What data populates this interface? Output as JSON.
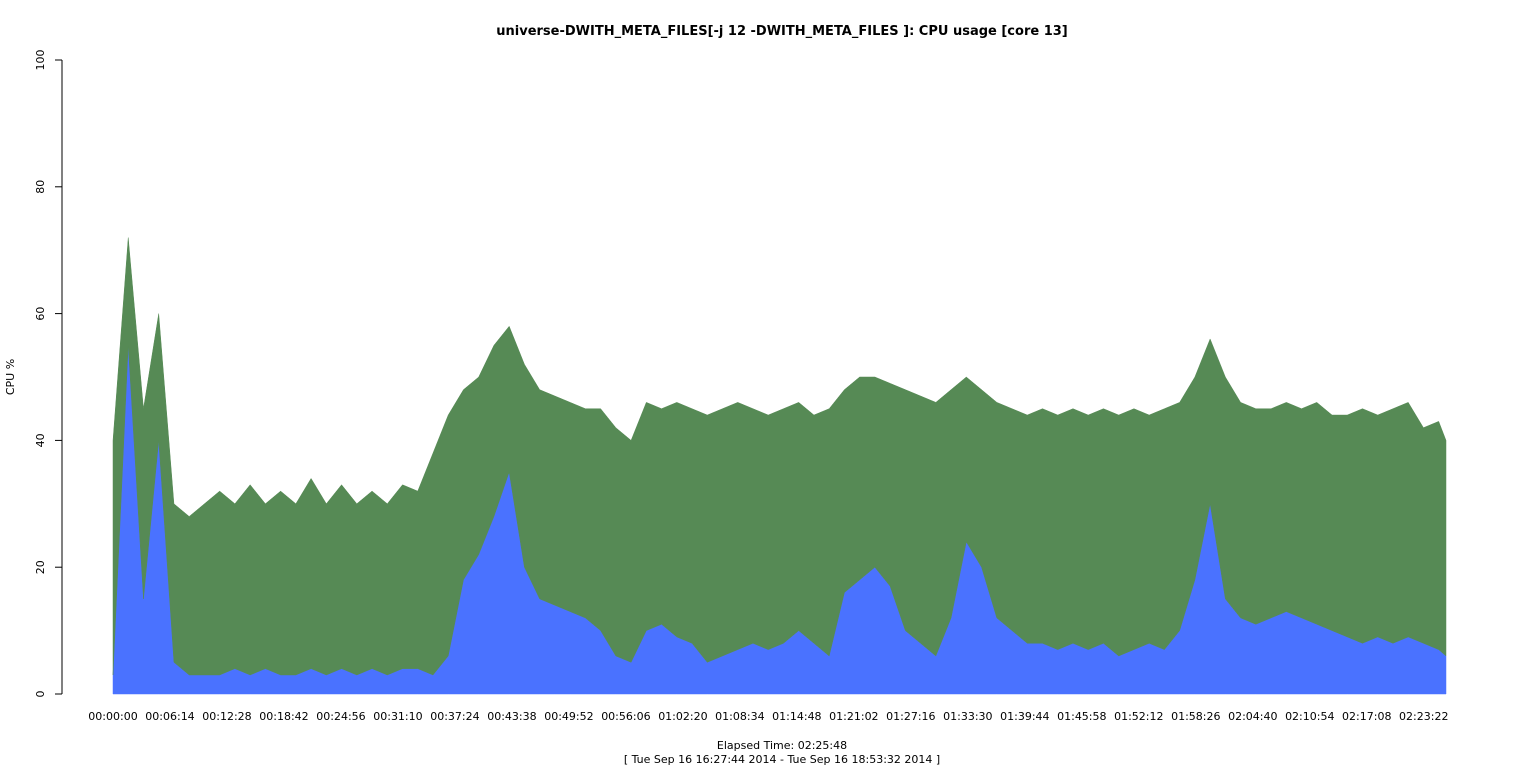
{
  "chart_data": {
    "type": "stacked_area",
    "title": "universe-DWITH_META_FILES[-j 12 -DWITH_META_FILES ]: CPU usage [core 13]",
    "y_label": "CPU %",
    "x_label": "Elapsed Time: 02:25:48",
    "subtitle": "[ Tue Sep 16 16:27:44 2014 - Tue Sep 16 18:53:32 2014 ]",
    "x": [
      0,
      100,
      200,
      300,
      400,
      500,
      600,
      700,
      800,
      900,
      1000,
      1100,
      1200,
      1300,
      1400,
      1500,
      1600,
      1700,
      1800,
      1900,
      2000,
      2100,
      2200,
      2300,
      2400,
      2500,
      2600,
      2700,
      2800,
      2900,
      3000,
      3100,
      3200,
      3300,
      3400,
      3500,
      3600,
      3700,
      3800,
      3900,
      4000,
      4100,
      4200,
      4300,
      4400,
      4500,
      4600,
      4700,
      4800,
      4900,
      5000,
      5100,
      5200,
      5300,
      5400,
      5500,
      5600,
      5700,
      5800,
      5900,
      6000,
      6100,
      6200,
      6300,
      6400,
      6500,
      6600,
      6700,
      6800,
      6900,
      7000,
      7100,
      7200,
      7300,
      7400,
      7500,
      7600,
      7700,
      7800,
      7900,
      8000,
      8100,
      8200,
      8300,
      8400,
      8500,
      8600,
      8700,
      8748
    ],
    "series": [
      {
        "color": "#4a72ff",
        "values": [
          3,
          55,
          15,
          40,
          5,
          3,
          3,
          3,
          4,
          3,
          4,
          3,
          3,
          4,
          3,
          4,
          3,
          4,
          3,
          4,
          4,
          3,
          6,
          18,
          22,
          28,
          35,
          20,
          15,
          14,
          13,
          12,
          10,
          6,
          5,
          10,
          11,
          9,
          8,
          5,
          6,
          7,
          8,
          7,
          8,
          10,
          8,
          6,
          16,
          18,
          20,
          17,
          10,
          8,
          6,
          12,
          24,
          20,
          12,
          10,
          8,
          8,
          7,
          8,
          7,
          8,
          6,
          7,
          8,
          7,
          10,
          18,
          30,
          15,
          12,
          11,
          12,
          13,
          12,
          11,
          10,
          9,
          8,
          9,
          8,
          9,
          8,
          7,
          6
        ]
      },
      {
        "color": "#568a55",
        "values": [
          37,
          17,
          30,
          20,
          25,
          25,
          27,
          29,
          26,
          30,
          26,
          29,
          27,
          30,
          27,
          29,
          27,
          28,
          27,
          29,
          28,
          35,
          38,
          30,
          28,
          27,
          23,
          32,
          33,
          33,
          33,
          33,
          35,
          36,
          35,
          36,
          34,
          37,
          37,
          39,
          39,
          39,
          37,
          37,
          37,
          36,
          36,
          39,
          32,
          32,
          30,
          32,
          38,
          39,
          40,
          36,
          26,
          28,
          34,
          35,
          36,
          37,
          37,
          37,
          37,
          37,
          38,
          38,
          36,
          38,
          36,
          32,
          26,
          35,
          34,
          34,
          33,
          33,
          33,
          35,
          34,
          35,
          37,
          35,
          37,
          37,
          34,
          36,
          34
        ]
      }
    ],
    "xlim": [
      0,
      8748
    ],
    "ylim": [
      0,
      100
    ],
    "yticks": [
      0,
      20,
      40,
      60,
      80,
      100
    ],
    "xticks": [
      {
        "value": 0,
        "label": "00:00:00"
      },
      {
        "value": 374,
        "label": "00:06:14"
      },
      {
        "value": 748,
        "label": "00:12:28"
      },
      {
        "value": 1122,
        "label": "00:18:42"
      },
      {
        "value": 1496,
        "label": "00:24:56"
      },
      {
        "value": 1870,
        "label": "00:31:10"
      },
      {
        "value": 2244,
        "label": "00:37:24"
      },
      {
        "value": 2618,
        "label": "00:43:38"
      },
      {
        "value": 2992,
        "label": "00:49:52"
      },
      {
        "value": 3366,
        "label": "00:56:06"
      },
      {
        "value": 3740,
        "label": "01:02:20"
      },
      {
        "value": 4114,
        "label": "01:08:34"
      },
      {
        "value": 4488,
        "label": "01:14:48"
      },
      {
        "value": 4862,
        "label": "01:21:02"
      },
      {
        "value": 5236,
        "label": "01:27:16"
      },
      {
        "value": 5610,
        "label": "01:33:30"
      },
      {
        "value": 5984,
        "label": "01:39:44"
      },
      {
        "value": 6358,
        "label": "01:45:58"
      },
      {
        "value": 6732,
        "label": "01:52:12"
      },
      {
        "value": 7106,
        "label": "01:58:26"
      },
      {
        "value": 7480,
        "label": "02:04:40"
      },
      {
        "value": 7854,
        "label": "02:10:54"
      },
      {
        "value": 8228,
        "label": "02:17:08"
      },
      {
        "value": 8602,
        "label": "02:23:22"
      }
    ]
  }
}
